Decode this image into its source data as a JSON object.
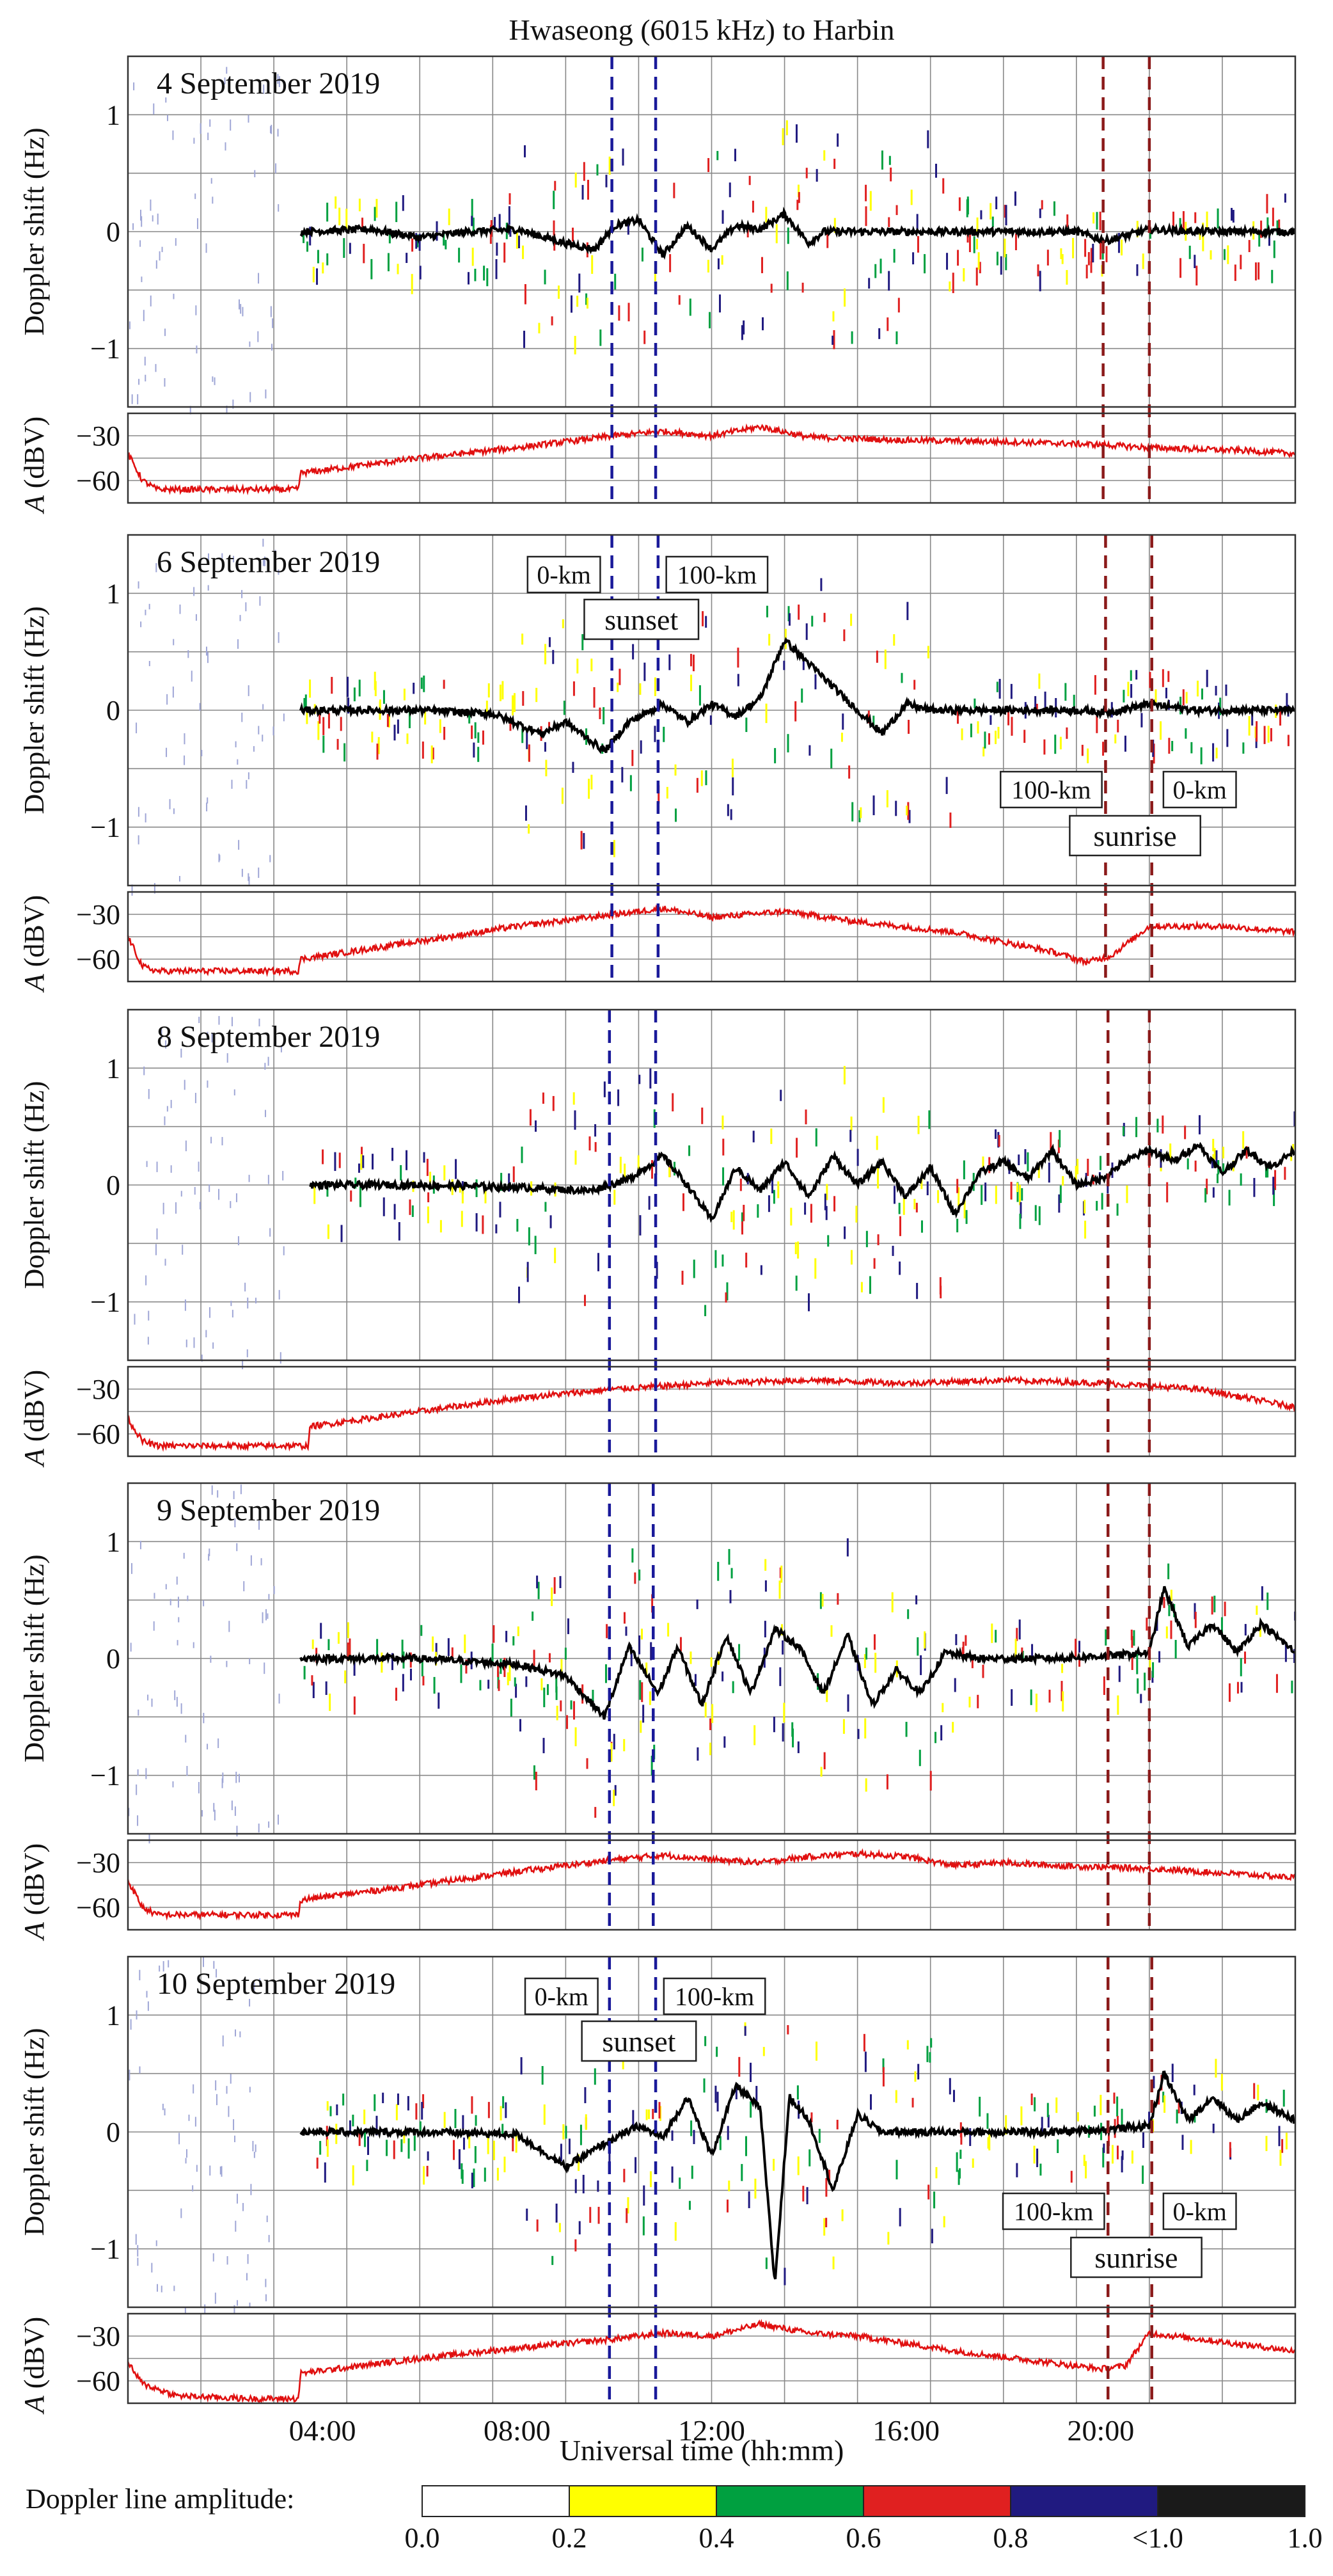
{
  "figure": {
    "title": "Hwaseong (6015 kHz) to Harbin",
    "xlabel": "Universal time (hh:mm)",
    "doppler_ylabel": "Doppler shift (Hz)",
    "amp_ylabel_italic": "A",
    "amp_ylabel_unit": " (dBV)"
  },
  "chart_data": {
    "type": "line",
    "x_unit": "hours UT",
    "xlim": [
      0,
      24
    ],
    "x_ticks": [
      {
        "v": 4,
        "label": "04:00"
      },
      {
        "v": 8,
        "label": "08:00"
      },
      {
        "v": 12,
        "label": "12:00"
      },
      {
        "v": 16,
        "label": "16:00"
      },
      {
        "v": 20,
        "label": "20:00"
      }
    ],
    "doppler_ylim": [
      -1.5,
      1.5
    ],
    "doppler_ticks": [
      {
        "v": 1,
        "label": "1"
      },
      {
        "v": 0,
        "label": "0"
      },
      {
        "v": -1,
        "label": "−1"
      }
    ],
    "amp_ylim": [
      -75,
      -15
    ],
    "amp_ticks": [
      {
        "v": -30,
        "label": "−30"
      },
      {
        "v": -60,
        "label": "−60"
      }
    ],
    "panels": [
      {
        "date": "4 September 2019",
        "sunset_lines": [
          9.95,
          10.85
        ],
        "sunrise_lines": [
          20.05,
          21.0
        ],
        "annotations": null,
        "doppler_start": 3.55,
        "doppler_end": 24,
        "doppler_trace": [
          [
            3.55,
            0
          ],
          [
            5,
            0.02
          ],
          [
            6,
            -0.05
          ],
          [
            7,
            0
          ],
          [
            8,
            0.02
          ],
          [
            9,
            -0.1
          ],
          [
            9.6,
            -0.15
          ],
          [
            10,
            0.05
          ],
          [
            10.5,
            0.1
          ],
          [
            11,
            -0.2
          ],
          [
            11.5,
            0.05
          ],
          [
            12,
            -0.15
          ],
          [
            12.5,
            0.05
          ],
          [
            13,
            0.02
          ],
          [
            13.5,
            0.15
          ],
          [
            14,
            -0.1
          ],
          [
            14.3,
            0
          ],
          [
            16,
            0
          ],
          [
            18,
            0
          ],
          [
            19.5,
            0
          ],
          [
            20.1,
            -0.08
          ],
          [
            21,
            0.02
          ],
          [
            22,
            0
          ],
          [
            24,
            0
          ]
        ],
        "amp_trace": [
          [
            0,
            -42
          ],
          [
            0.3,
            -60
          ],
          [
            0.6,
            -66
          ],
          [
            3.5,
            -66
          ],
          [
            3.55,
            -55
          ],
          [
            6,
            -45
          ],
          [
            8,
            -38
          ],
          [
            10,
            -30
          ],
          [
            11,
            -27
          ],
          [
            12,
            -30
          ],
          [
            13,
            -24
          ],
          [
            14,
            -31
          ],
          [
            16,
            -33
          ],
          [
            18,
            -34
          ],
          [
            20,
            -36
          ],
          [
            21,
            -38
          ],
          [
            23,
            -40
          ],
          [
            24,
            -42
          ]
        ]
      },
      {
        "date": "6 September 2019",
        "sunset_lines": [
          9.95,
          10.9
        ],
        "sunrise_lines": [
          20.1,
          21.05
        ],
        "annotations": {
          "sunset_left": "0-km",
          "sunset_right": "100-km",
          "sunset": "sunset",
          "sunrise_left": "100-km",
          "sunrise_right": "0-km",
          "sunrise": "sunrise"
        },
        "doppler_start": 3.55,
        "doppler_end": 24,
        "doppler_trace": [
          [
            3.55,
            0
          ],
          [
            6,
            0
          ],
          [
            7.5,
            -0.03
          ],
          [
            8.5,
            -0.2
          ],
          [
            9,
            -0.1
          ],
          [
            9.8,
            -0.35
          ],
          [
            10.3,
            -0.1
          ],
          [
            11,
            0.05
          ],
          [
            11.5,
            -0.1
          ],
          [
            12,
            0.05
          ],
          [
            12.5,
            -0.05
          ],
          [
            13,
            0.1
          ],
          [
            13.5,
            0.6
          ],
          [
            14,
            0.4
          ],
          [
            14.5,
            0.2
          ],
          [
            15,
            0
          ],
          [
            15.5,
            -0.2
          ],
          [
            16,
            0.05
          ],
          [
            16.5,
            0
          ],
          [
            18,
            0
          ],
          [
            19.5,
            0
          ],
          [
            20.1,
            -0.02
          ],
          [
            21,
            0.05
          ],
          [
            22,
            0
          ],
          [
            24,
            0
          ]
        ],
        "amp_trace": [
          [
            0,
            -45
          ],
          [
            0.3,
            -65
          ],
          [
            0.6,
            -68
          ],
          [
            3.5,
            -68
          ],
          [
            3.55,
            -60
          ],
          [
            6,
            -48
          ],
          [
            8,
            -38
          ],
          [
            10,
            -30
          ],
          [
            11,
            -26
          ],
          [
            12,
            -32
          ],
          [
            13.5,
            -28
          ],
          [
            15,
            -35
          ],
          [
            17,
            -42
          ],
          [
            19,
            -55
          ],
          [
            19.7,
            -62
          ],
          [
            20.2,
            -58
          ],
          [
            21,
            -38
          ],
          [
            22.5,
            -38
          ],
          [
            24,
            -42
          ]
        ]
      },
      {
        "date": "8 September 2019",
        "sunset_lines": [
          9.9,
          10.85
        ],
        "sunrise_lines": [
          20.15,
          21.0
        ],
        "annotations": null,
        "doppler_start": 3.75,
        "doppler_end": 24,
        "doppler_trace": [
          [
            3.75,
            0
          ],
          [
            6,
            0
          ],
          [
            8,
            -0.02
          ],
          [
            9.5,
            -0.05
          ],
          [
            10.3,
            0.05
          ],
          [
            11,
            0.25
          ],
          [
            11.5,
            0
          ],
          [
            12,
            -0.3
          ],
          [
            12.5,
            0.15
          ],
          [
            13,
            -0.05
          ],
          [
            13.5,
            0.2
          ],
          [
            14,
            -0.1
          ],
          [
            14.5,
            0.25
          ],
          [
            15,
            0
          ],
          [
            15.5,
            0.2
          ],
          [
            16,
            -0.1
          ],
          [
            16.5,
            0.15
          ],
          [
            17,
            -0.25
          ],
          [
            17.5,
            0.1
          ],
          [
            18,
            0.2
          ],
          [
            18.5,
            0.05
          ],
          [
            19,
            0.3
          ],
          [
            19.5,
            0
          ],
          [
            20,
            0.05
          ],
          [
            20.5,
            0.2
          ],
          [
            21,
            0.3
          ],
          [
            21.5,
            0.2
          ],
          [
            22,
            0.35
          ],
          [
            22.5,
            0.1
          ],
          [
            23,
            0.3
          ],
          [
            23.5,
            0.15
          ],
          [
            24,
            0.3
          ]
        ],
        "amp_trace": [
          [
            0,
            -50
          ],
          [
            0.3,
            -65
          ],
          [
            0.6,
            -68
          ],
          [
            3.7,
            -68
          ],
          [
            3.75,
            -55
          ],
          [
            6,
            -45
          ],
          [
            8,
            -36
          ],
          [
            10,
            -30
          ],
          [
            12,
            -26
          ],
          [
            14,
            -24
          ],
          [
            16,
            -26
          ],
          [
            18,
            -24
          ],
          [
            20,
            -26
          ],
          [
            22,
            -30
          ],
          [
            23,
            -36
          ],
          [
            24,
            -42
          ]
        ]
      },
      {
        "date": "9 September 2019",
        "sunset_lines": [
          9.9,
          10.8
        ],
        "sunrise_lines": [
          20.15,
          21.0
        ],
        "annotations": null,
        "doppler_start": 3.55,
        "doppler_end": 24,
        "doppler_trace": [
          [
            3.55,
            0
          ],
          [
            6,
            0
          ],
          [
            8,
            -0.05
          ],
          [
            9,
            -0.15
          ],
          [
            9.8,
            -0.5
          ],
          [
            10.3,
            0.1
          ],
          [
            10.9,
            -0.3
          ],
          [
            11.3,
            0.1
          ],
          [
            11.8,
            -0.4
          ],
          [
            12.3,
            0.2
          ],
          [
            12.8,
            -0.3
          ],
          [
            13.3,
            0.25
          ],
          [
            13.8,
            0.1
          ],
          [
            14.3,
            -0.3
          ],
          [
            14.8,
            0.2
          ],
          [
            15.3,
            -0.4
          ],
          [
            15.8,
            -0.1
          ],
          [
            16.3,
            -0.3
          ],
          [
            16.8,
            0.05
          ],
          [
            17.5,
            0
          ],
          [
            19,
            0
          ],
          [
            20,
            0.02
          ],
          [
            21,
            0.05
          ],
          [
            21.3,
            0.6
          ],
          [
            21.8,
            0.1
          ],
          [
            22.3,
            0.3
          ],
          [
            22.8,
            0.05
          ],
          [
            23.3,
            0.3
          ],
          [
            24,
            0.05
          ]
        ],
        "amp_trace": [
          [
            0,
            -42
          ],
          [
            0.3,
            -60
          ],
          [
            0.6,
            -65
          ],
          [
            3.5,
            -65
          ],
          [
            3.55,
            -55
          ],
          [
            6,
            -45
          ],
          [
            8,
            -36
          ],
          [
            10,
            -28
          ],
          [
            11,
            -25
          ],
          [
            12,
            -28
          ],
          [
            13,
            -30
          ],
          [
            14,
            -26
          ],
          [
            15,
            -24
          ],
          [
            16,
            -26
          ],
          [
            17,
            -32
          ],
          [
            18,
            -30
          ],
          [
            19,
            -32
          ],
          [
            20,
            -33
          ],
          [
            21,
            -34
          ],
          [
            22,
            -36
          ],
          [
            24,
            -40
          ]
        ]
      },
      {
        "date": "10 September 2019",
        "sunset_lines": [
          9.9,
          10.85
        ],
        "sunrise_lines": [
          20.15,
          21.05
        ],
        "annotations": {
          "sunset_left": "0-km",
          "sunset_right": "100-km",
          "sunset": "sunset",
          "sunrise_left": "100-km",
          "sunrise_right": "0-km",
          "sunrise": "sunrise"
        },
        "doppler_start": 3.55,
        "doppler_end": 24,
        "doppler_trace": [
          [
            3.55,
            0
          ],
          [
            6,
            0
          ],
          [
            8,
            -0.02
          ],
          [
            9,
            -0.3
          ],
          [
            9.8,
            -0.1
          ],
          [
            10.5,
            0.05
          ],
          [
            11,
            -0.05
          ],
          [
            11.5,
            0.3
          ],
          [
            12,
            -0.2
          ],
          [
            12.5,
            0.4
          ],
          [
            13,
            0.2
          ],
          [
            13.3,
            -1.3
          ],
          [
            13.6,
            0.3
          ],
          [
            14,
            0.1
          ],
          [
            14.5,
            -0.5
          ],
          [
            15,
            0.15
          ],
          [
            15.5,
            0
          ],
          [
            17,
            0
          ],
          [
            19,
            0
          ],
          [
            20,
            0.02
          ],
          [
            21,
            0.05
          ],
          [
            21.3,
            0.5
          ],
          [
            21.8,
            0.1
          ],
          [
            22.3,
            0.3
          ],
          [
            22.8,
            0.1
          ],
          [
            23.3,
            0.25
          ],
          [
            24,
            0.1
          ]
        ],
        "amp_trace": [
          [
            0,
            -48
          ],
          [
            0.3,
            -62
          ],
          [
            1,
            -70
          ],
          [
            2.5,
            -72
          ],
          [
            3.5,
            -72
          ],
          [
            3.55,
            -55
          ],
          [
            6,
            -45
          ],
          [
            8,
            -38
          ],
          [
            10,
            -32
          ],
          [
            11,
            -28
          ],
          [
            12,
            -30
          ],
          [
            13,
            -22
          ],
          [
            14,
            -28
          ],
          [
            15,
            -30
          ],
          [
            17,
            -40
          ],
          [
            19,
            -48
          ],
          [
            20,
            -52
          ],
          [
            20.5,
            -50
          ],
          [
            21,
            -28
          ],
          [
            22,
            -32
          ],
          [
            23,
            -36
          ],
          [
            24,
            -40
          ]
        ]
      }
    ],
    "colorbar": {
      "label": "Doppler line amplitude:",
      "segments": [
        {
          "color": "#ffffff",
          "from": "0.0",
          "to": "0.2"
        },
        {
          "color": "#ffff00",
          "from": "0.2",
          "to": "0.4"
        },
        {
          "color": "#00a040",
          "from": "0.4",
          "to": "0.6"
        },
        {
          "color": "#e02020",
          "from": "0.6",
          "to": "0.8"
        },
        {
          "color": "#201a80",
          "from": "0.8",
          "to": "<1.0"
        },
        {
          "color": "#1a1a1a",
          "from": "<1.0",
          "to": "1.0"
        }
      ],
      "tick_labels": [
        "0.0",
        "0.2",
        "0.4",
        "0.6",
        "0.8",
        "<1.0",
        "1.0"
      ]
    },
    "colors": {
      "doppler_line": "#000000",
      "amplitude_line": "#e01010",
      "sunset_line": "#1a1a9a",
      "sunrise_line": "#8b1a1a",
      "grid": "#888888"
    }
  }
}
